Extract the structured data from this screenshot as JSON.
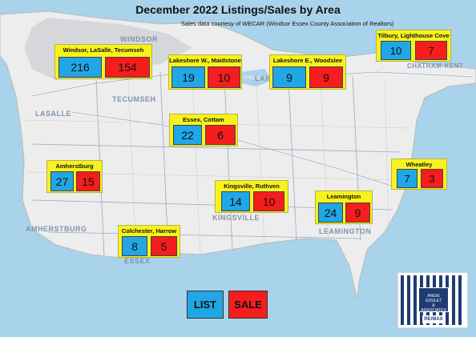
{
  "title": "December 2022 Listings/Sales by Area",
  "subtitle": "Sales data courtesy of WECAR (Windsor Essex County Association of Realtors)",
  "legend": {
    "list_label": "LIST",
    "sale_label": "SALE",
    "list_color": "#21a6e6",
    "sale_color": "#f51d1d"
  },
  "areas": [
    {
      "name": "Windsor, LaSalle, Tecumseh",
      "list": 216,
      "sale": 154
    },
    {
      "name": "Lakeshore W., Maidstone",
      "list": 19,
      "sale": 10
    },
    {
      "name": "Lakeshore E., Woodslee",
      "list": 9,
      "sale": 9
    },
    {
      "name": "Tilbury, Lighthouse Cove",
      "list": 10,
      "sale": 7
    },
    {
      "name": "Essex, Cottam",
      "list": 22,
      "sale": 6
    },
    {
      "name": "Amherstburg",
      "list": 27,
      "sale": 15
    },
    {
      "name": "Wheatley",
      "list": 7,
      "sale": 3
    },
    {
      "name": "Kingsville, Ruthven",
      "list": 14,
      "sale": 10
    },
    {
      "name": "Leamington",
      "list": 24,
      "sale": 9
    },
    {
      "name": "Colchester, Harrow",
      "list": 8,
      "sale": 5
    }
  ],
  "map_labels": {
    "windsor": "WINDSOR",
    "lasalle": "LASALLE",
    "tecumseh": "TECUMSEH",
    "lakeshore": "LAK",
    "chatham_kent": "CHATHAM-KENT",
    "amherstburg": "AMHERSTBURG",
    "essex": "ESSEX",
    "kingsville": "KINGSVILLE",
    "leamington": "LEAMINGTON"
  },
  "logo": {
    "line1": "ANGIE GOULET",
    "line2": "& ASSOCIATES",
    "brand": "RE/MAX"
  },
  "colors": {
    "water": "#a9d3ea",
    "land": "#ededed",
    "highlight": "#f7f21e"
  }
}
